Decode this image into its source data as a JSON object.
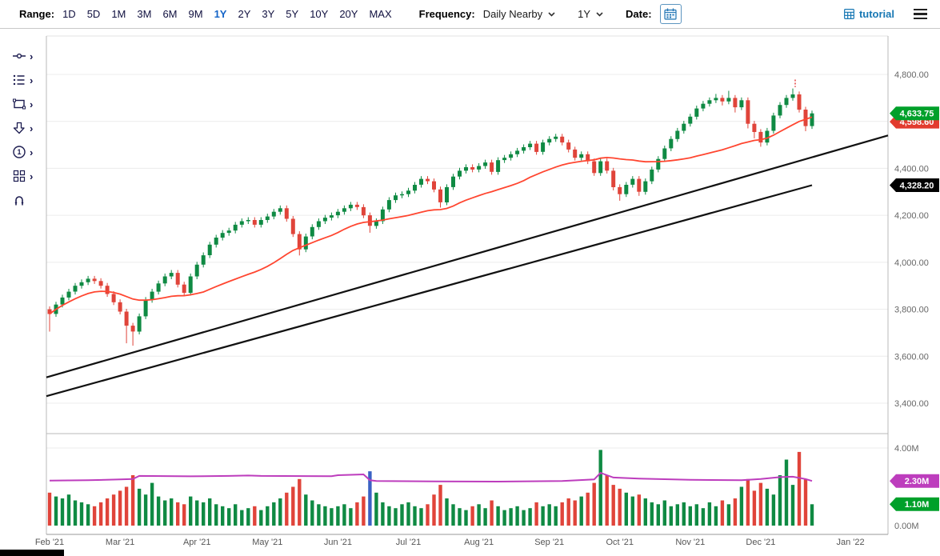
{
  "toolbar": {
    "range_label": "Range:",
    "ranges": [
      "1D",
      "5D",
      "1M",
      "3M",
      "6M",
      "9M",
      "1Y",
      "2Y",
      "3Y",
      "5Y",
      "10Y",
      "20Y",
      "MAX"
    ],
    "active_range": "1Y",
    "frequency_label": "Frequency:",
    "frequency_value": "Daily Nearby",
    "period_value": "1Y",
    "date_label": "Date:",
    "tutorial_label": "tutorial"
  },
  "sidebar": {
    "tools": [
      "measure-tool",
      "indicators-tool",
      "shapes-tool",
      "arrow-tool",
      "annotation-tool",
      "grid-tool",
      "magnet-tool"
    ]
  },
  "chart_data": {
    "type": "candlestick+volume",
    "price_axis": {
      "ticks": [
        4800,
        4600,
        4400,
        4200,
        4000,
        3800,
        3600,
        3400
      ],
      "decimals": 2
    },
    "volume_axis": {
      "ticks": [
        {
          "v": 4,
          "label": "4.00M"
        },
        {
          "v": 0,
          "label": "0.00M"
        }
      ]
    },
    "month_labels": [
      {
        "text": "Feb '21",
        "index": 0
      },
      {
        "text": "Mar '21",
        "index": 11
      },
      {
        "text": "Apr '21",
        "index": 23
      },
      {
        "text": "May '21",
        "index": 34
      },
      {
        "text": "Jun '21",
        "index": 45
      },
      {
        "text": "Jul '21",
        "index": 56
      },
      {
        "text": "Aug '21",
        "index": 67
      },
      {
        "text": "Sep '21",
        "index": 78
      },
      {
        "text": "Oct '21",
        "index": 89
      },
      {
        "text": "Nov '21",
        "index": 100
      },
      {
        "text": "Dec '21",
        "index": 111
      },
      {
        "text": "Jan '22",
        "index": 125
      }
    ],
    "candles": [
      [
        3800,
        3812,
        3705,
        3780
      ],
      [
        3780,
        3832,
        3768,
        3820
      ],
      [
        3820,
        3862,
        3808,
        3850
      ],
      [
        3850,
        3887,
        3838,
        3875
      ],
      [
        3875,
        3912,
        3863,
        3900
      ],
      [
        3900,
        3927,
        3888,
        3915
      ],
      [
        3915,
        3942,
        3903,
        3930
      ],
      [
        3930,
        3942,
        3908,
        3920
      ],
      [
        3920,
        3932,
        3888,
        3900
      ],
      [
        3900,
        3912,
        3853,
        3865
      ],
      [
        3865,
        3877,
        3818,
        3830
      ],
      [
        3830,
        3842,
        3778,
        3790
      ],
      [
        3790,
        3802,
        3655,
        3730
      ],
      [
        3730,
        3742,
        3645,
        3705
      ],
      [
        3705,
        3782,
        3693,
        3770
      ],
      [
        3770,
        3852,
        3758,
        3840
      ],
      [
        3840,
        3887,
        3828,
        3875
      ],
      [
        3875,
        3922,
        3863,
        3910
      ],
      [
        3910,
        3952,
        3898,
        3940
      ],
      [
        3940,
        3967,
        3928,
        3955
      ],
      [
        3955,
        3967,
        3893,
        3905
      ],
      [
        3905,
        3917,
        3858,
        3870
      ],
      [
        3870,
        3952,
        3858,
        3940
      ],
      [
        3940,
        4002,
        3928,
        3990
      ],
      [
        3990,
        4042,
        3978,
        4030
      ],
      [
        4030,
        4087,
        4018,
        4075
      ],
      [
        4075,
        4117,
        4063,
        4105
      ],
      [
        4105,
        4137,
        4093,
        4125
      ],
      [
        4125,
        4147,
        4113,
        4135
      ],
      [
        4135,
        4172,
        4123,
        4160
      ],
      [
        4160,
        4187,
        4148,
        4175
      ],
      [
        4175,
        4192,
        4163,
        4180
      ],
      [
        4180,
        4192,
        4148,
        4160
      ],
      [
        4160,
        4192,
        4148,
        4180
      ],
      [
        4180,
        4207,
        4168,
        4195
      ],
      [
        4195,
        4227,
        4183,
        4215
      ],
      [
        4215,
        4242,
        4203,
        4230
      ],
      [
        4230,
        4242,
        4173,
        4185
      ],
      [
        4185,
        4197,
        4108,
        4120
      ],
      [
        4120,
        4132,
        4029,
        4055
      ],
      [
        4055,
        4122,
        4043,
        4110
      ],
      [
        4110,
        4162,
        4098,
        4150
      ],
      [
        4150,
        4187,
        4138,
        4175
      ],
      [
        4175,
        4202,
        4163,
        4190
      ],
      [
        4190,
        4212,
        4178,
        4200
      ],
      [
        4200,
        4227,
        4188,
        4215
      ],
      [
        4215,
        4242,
        4203,
        4230
      ],
      [
        4230,
        4257,
        4218,
        4245
      ],
      [
        4245,
        4257,
        4223,
        4235
      ],
      [
        4235,
        4247,
        4188,
        4200
      ],
      [
        4200,
        4212,
        4126,
        4155
      ],
      [
        4155,
        4187,
        4143,
        4175
      ],
      [
        4175,
        4237,
        4163,
        4225
      ],
      [
        4225,
        4277,
        4213,
        4265
      ],
      [
        4265,
        4297,
        4253,
        4285
      ],
      [
        4285,
        4302,
        4273,
        4290
      ],
      [
        4290,
        4317,
        4278,
        4305
      ],
      [
        4305,
        4342,
        4293,
        4330
      ],
      [
        4330,
        4367,
        4318,
        4355
      ],
      [
        4355,
        4367,
        4333,
        4345
      ],
      [
        4345,
        4357,
        4298,
        4310
      ],
      [
        4310,
        4322,
        4233,
        4255
      ],
      [
        4255,
        4332,
        4243,
        4320
      ],
      [
        4320,
        4377,
        4308,
        4365
      ],
      [
        4365,
        4402,
        4353,
        4390
      ],
      [
        4390,
        4417,
        4378,
        4405
      ],
      [
        4405,
        4417,
        4383,
        4395
      ],
      [
        4395,
        4422,
        4383,
        4410
      ],
      [
        4410,
        4437,
        4398,
        4425
      ],
      [
        4425,
        4437,
        4373,
        4385
      ],
      [
        4385,
        4447,
        4373,
        4435
      ],
      [
        4435,
        4457,
        4423,
        4445
      ],
      [
        4445,
        4472,
        4433,
        4460
      ],
      [
        4460,
        4487,
        4448,
        4475
      ],
      [
        4475,
        4502,
        4463,
        4490
      ],
      [
        4490,
        4517,
        4478,
        4505
      ],
      [
        4505,
        4517,
        4458,
        4470
      ],
      [
        4470,
        4522,
        4458,
        4510
      ],
      [
        4510,
        4537,
        4498,
        4525
      ],
      [
        4525,
        4547,
        4513,
        4535
      ],
      [
        4535,
        4547,
        4498,
        4510
      ],
      [
        4510,
        4522,
        4468,
        4480
      ],
      [
        4480,
        4492,
        4433,
        4445
      ],
      [
        4445,
        4472,
        4433,
        4460
      ],
      [
        4460,
        4472,
        4418,
        4430
      ],
      [
        4430,
        4442,
        4368,
        4380
      ],
      [
        4380,
        4442,
        4368,
        4430
      ],
      [
        4430,
        4442,
        4378,
        4390
      ],
      [
        4390,
        4402,
        4306,
        4320
      ],
      [
        4320,
        4332,
        4262,
        4290
      ],
      [
        4290,
        4342,
        4278,
        4330
      ],
      [
        4330,
        4367,
        4318,
        4355
      ],
      [
        4355,
        4367,
        4283,
        4300
      ],
      [
        4300,
        4357,
        4288,
        4345
      ],
      [
        4345,
        4407,
        4333,
        4395
      ],
      [
        4395,
        4452,
        4383,
        4440
      ],
      [
        4440,
        4497,
        4428,
        4485
      ],
      [
        4485,
        4537,
        4473,
        4525
      ],
      [
        4525,
        4572,
        4513,
        4560
      ],
      [
        4560,
        4602,
        4548,
        4590
      ],
      [
        4590,
        4632,
        4578,
        4620
      ],
      [
        4620,
        4667,
        4608,
        4655
      ],
      [
        4655,
        4687,
        4643,
        4675
      ],
      [
        4675,
        4702,
        4663,
        4690
      ],
      [
        4690,
        4717,
        4678,
        4700
      ],
      [
        4700,
        4712,
        4668,
        4685
      ],
      [
        4685,
        4730,
        4673,
        4700
      ],
      [
        4700,
        4712,
        4638,
        4660
      ],
      [
        4660,
        4702,
        4648,
        4690
      ],
      [
        4690,
        4702,
        4570,
        4590
      ],
      [
        4590,
        4602,
        4528,
        4555
      ],
      [
        4555,
        4567,
        4492,
        4510
      ],
      [
        4510,
        4572,
        4498,
        4560
      ],
      [
        4560,
        4637,
        4548,
        4625
      ],
      [
        4625,
        4682,
        4613,
        4670
      ],
      [
        4670,
        4712,
        4658,
        4700
      ],
      [
        4700,
        4740,
        4688,
        4715
      ],
      [
        4715,
        4727,
        4638,
        4650
      ],
      [
        4650,
        4662,
        4558,
        4580
      ],
      [
        4580,
        4646,
        4568,
        4634
      ]
    ],
    "volumes": [
      1.7,
      1.5,
      1.4,
      1.6,
      1.3,
      1.2,
      1.1,
      1.0,
      1.2,
      1.4,
      1.6,
      1.8,
      2.0,
      2.6,
      1.9,
      1.6,
      2.2,
      1.5,
      1.3,
      1.4,
      1.2,
      1.1,
      1.5,
      1.3,
      1.2,
      1.4,
      1.1,
      1.0,
      0.9,
      1.1,
      0.8,
      0.9,
      1.0,
      0.8,
      1.0,
      1.2,
      1.4,
      1.7,
      2.0,
      2.4,
      1.6,
      1.3,
      1.1,
      1.0,
      0.9,
      1.0,
      1.1,
      0.9,
      1.2,
      1.5,
      2.8,
      1.7,
      1.2,
      1.0,
      0.9,
      1.1,
      1.2,
      1.0,
      0.9,
      1.1,
      1.6,
      2.1,
      1.4,
      1.1,
      0.9,
      0.8,
      1.0,
      1.1,
      0.9,
      1.3,
      1.0,
      0.8,
      0.9,
      1.0,
      0.8,
      0.9,
      1.2,
      1.0,
      1.1,
      1.0,
      1.2,
      1.4,
      1.3,
      1.5,
      1.7,
      2.2,
      3.9,
      2.6,
      2.1,
      1.9,
      1.7,
      1.5,
      1.6,
      1.4,
      1.2,
      1.1,
      1.3,
      1.0,
      1.1,
      1.2,
      1.0,
      1.1,
      0.9,
      1.2,
      1.0,
      1.3,
      1.1,
      1.4,
      2.0,
      2.4,
      1.8,
      2.2,
      1.9,
      1.6,
      2.6,
      3.4,
      2.1,
      3.8,
      2.4,
      1.1
    ],
    "volume_special_colors": [
      {
        "index": 50,
        "color": "#3a62c4"
      }
    ],
    "ma_red": {
      "window": 25,
      "color": "#ff4630"
    },
    "trendlines": [
      {
        "v1": 3510,
        "v2": 4540,
        "full_width": true,
        "color": "#111111"
      },
      {
        "v1": 3430,
        "v2": 4328.2,
        "full_width": false,
        "color": "#111111"
      }
    ],
    "avg_volume_line": {
      "color": "#bd3dbd",
      "points": [
        [
          0,
          2.32
        ],
        [
          6,
          2.34
        ],
        [
          11,
          2.38
        ],
        [
          13,
          2.4
        ],
        [
          14,
          2.56
        ],
        [
          22,
          2.54
        ],
        [
          28,
          2.56
        ],
        [
          31,
          2.58
        ],
        [
          33,
          2.56
        ],
        [
          44,
          2.55
        ],
        [
          45,
          2.6
        ],
        [
          49,
          2.64
        ],
        [
          50,
          2.34
        ],
        [
          51,
          2.3
        ],
        [
          60,
          2.28
        ],
        [
          70,
          2.27
        ],
        [
          80,
          2.3
        ],
        [
          85,
          2.38
        ],
        [
          86,
          2.72
        ],
        [
          87,
          2.6
        ],
        [
          88,
          2.48
        ],
        [
          92,
          2.42
        ],
        [
          100,
          2.36
        ],
        [
          108,
          2.34
        ],
        [
          111,
          2.4
        ],
        [
          114,
          2.5
        ],
        [
          116,
          2.52
        ],
        [
          118,
          2.4
        ],
        [
          119,
          2.3
        ]
      ]
    },
    "badges": [
      {
        "panel": "price",
        "value": 4598.6,
        "label": "4,598.60",
        "color": "#e23b2e"
      },
      {
        "panel": "price",
        "value": 4633.75,
        "label": "4,633.75",
        "color": "#00a02a"
      },
      {
        "panel": "price",
        "value": 4328.2,
        "label": "4,328.20",
        "color": "#000000"
      },
      {
        "panel": "volume",
        "value": 2.3,
        "label": "2.30M",
        "color": "#bd3dbd"
      },
      {
        "panel": "volume",
        "value": 1.1,
        "label": "1.10M",
        "color": "#00a02a"
      }
    ],
    "annotation": {
      "index": 116,
      "from": 4778,
      "to": 4746,
      "color": "#e03030"
    },
    "colors": {
      "up": "#0f8a43",
      "down": "#e0443a",
      "grid": "#ececec",
      "axis_text": "#666666"
    }
  }
}
